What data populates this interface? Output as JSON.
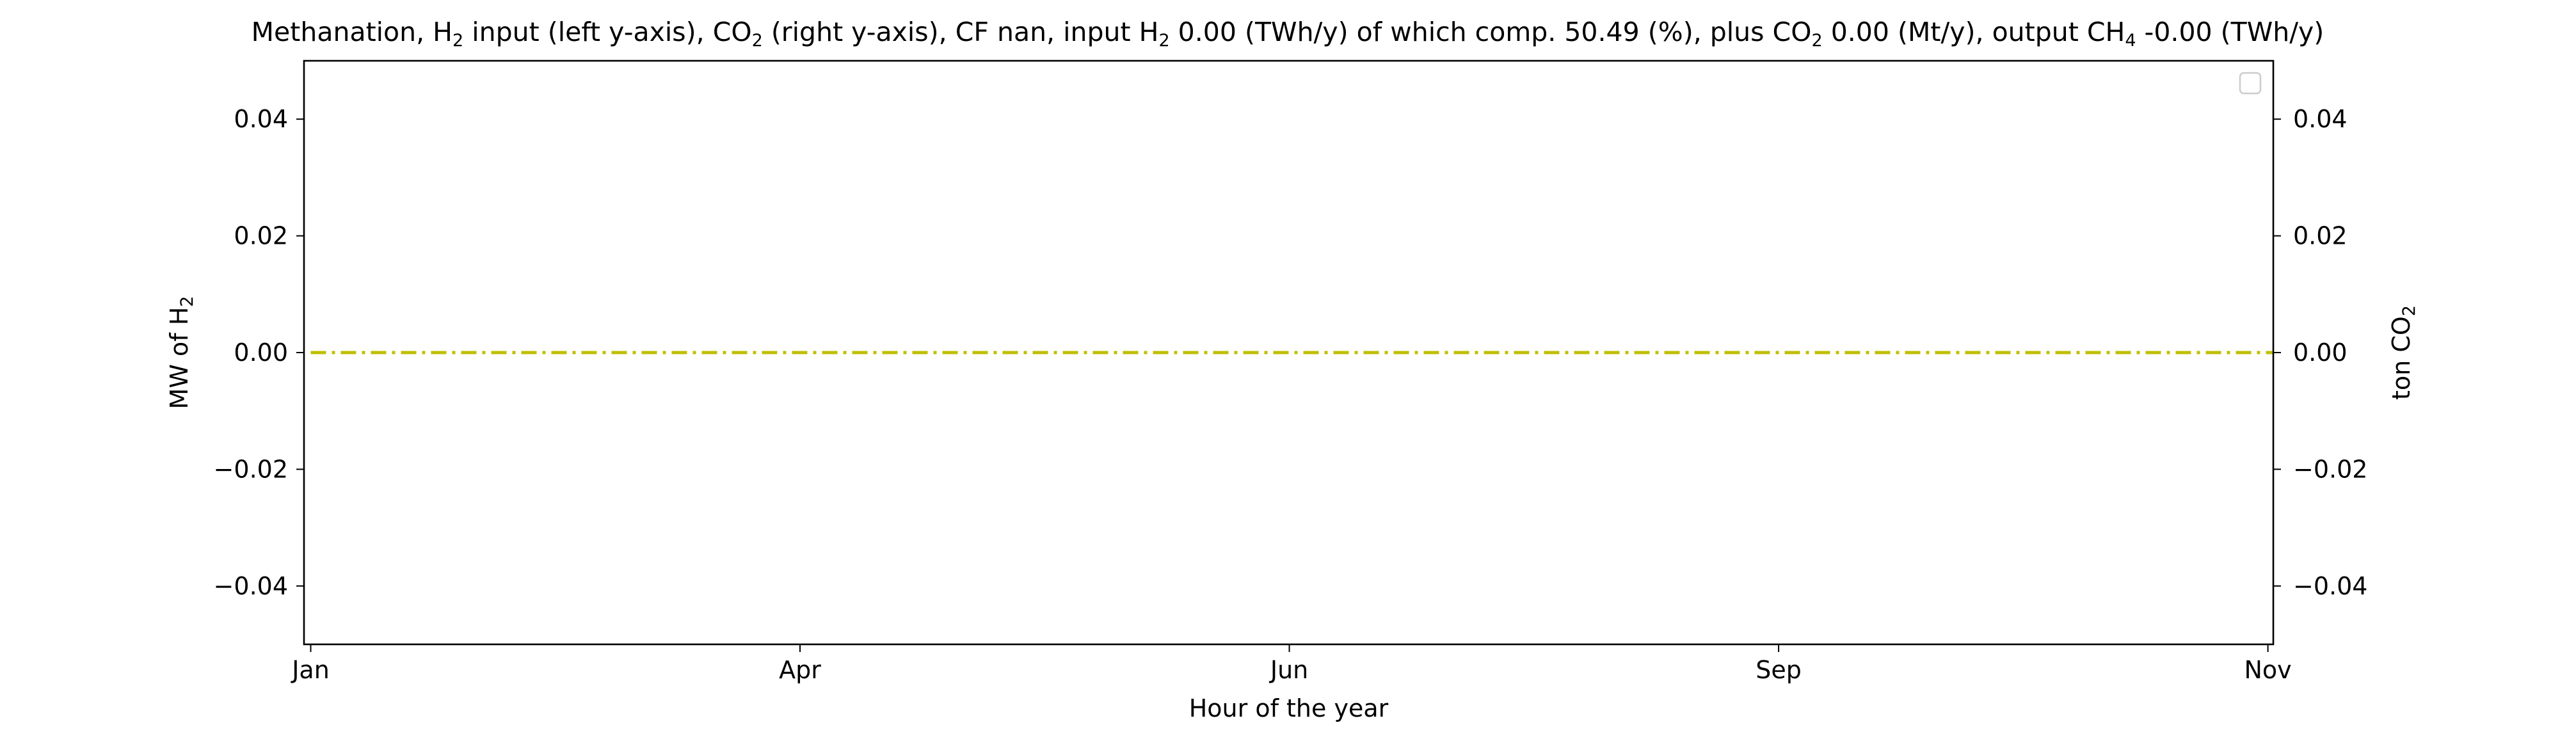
{
  "chart_data": {
    "type": "line",
    "title_parts": [
      {
        "t": "Methanation, H"
      },
      {
        "t": "2",
        "sub": true
      },
      {
        "t": " input (left y-axis), CO"
      },
      {
        "t": "2",
        "sub": true
      },
      {
        "t": " (right y-axis), CF nan, input H"
      },
      {
        "t": "2",
        "sub": true
      },
      {
        "t": " 0.00 (TWh/y) of which comp. 50.49 (%), plus CO"
      },
      {
        "t": "2",
        "sub": true
      },
      {
        "t": " 0.00 (Mt/y), output CH"
      },
      {
        "t": "4",
        "sub": true
      },
      {
        "t": " -0.00 (TWh/y)"
      }
    ],
    "xlabel": "Hour of the year",
    "ylabel_left_parts": [
      {
        "t": "MW of H"
      },
      {
        "t": "2",
        "sub": true
      }
    ],
    "ylabel_right_parts": [
      {
        "t": "ton CO"
      },
      {
        "t": "2",
        "sub": true
      }
    ],
    "x_range": [
      -30,
      8760
    ],
    "x_ticks": [
      {
        "value": 0,
        "label": "Jan"
      },
      {
        "value": 2184,
        "label": "Apr"
      },
      {
        "value": 4368,
        "label": "Jun"
      },
      {
        "value": 6552,
        "label": "Sep"
      },
      {
        "value": 8736,
        "label": "Nov"
      }
    ],
    "ylim_left": [
      -0.05,
      0.05
    ],
    "ylim_right": [
      -0.05,
      0.05
    ],
    "y_ticks": [
      -0.04,
      -0.02,
      0.0,
      0.02,
      0.04
    ],
    "y_tick_labels": [
      "−0.04",
      "−0.02",
      "0.00",
      "0.02",
      "0.04"
    ],
    "grid": false,
    "legend": {
      "placement": "upper-right",
      "entries": []
    },
    "series": [
      {
        "axis": "right",
        "color": "#bfbf00",
        "linestyle": "dashdot",
        "x": [
          0,
          8760
        ],
        "values": [
          0.0,
          0.0
        ]
      }
    ]
  }
}
